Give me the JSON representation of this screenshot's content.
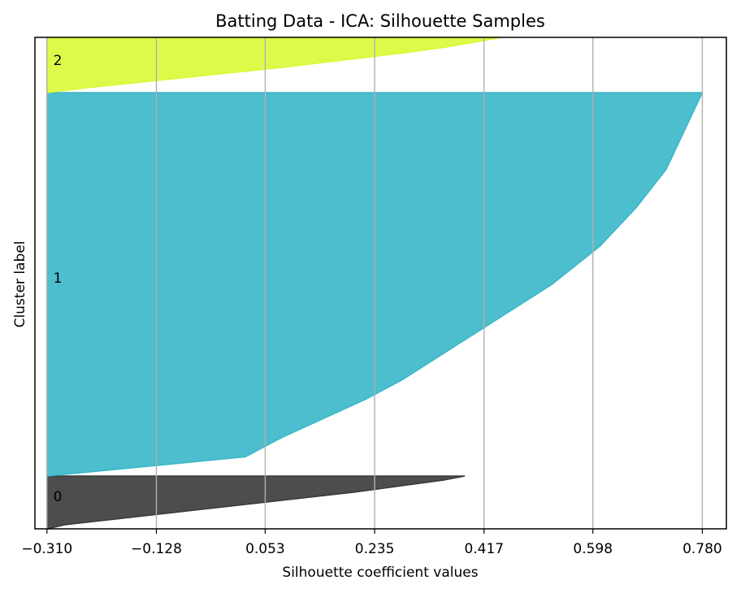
{
  "chart_data": {
    "type": "area",
    "title": "Batting Data - ICA: Silhouette Samples",
    "xlabel": "Silhouette coefficient values",
    "ylabel": "Cluster label",
    "xlim": [
      -0.33,
      0.82
    ],
    "xticks": [
      -0.31,
      -0.128,
      0.053,
      0.235,
      0.417,
      0.598,
      0.78
    ],
    "xtick_labels": [
      "−0.310",
      "−0.128",
      "0.053",
      "0.235",
      "0.417",
      "0.598",
      "0.780"
    ],
    "grid": "vertical",
    "series": [
      {
        "name": "0",
        "color": "#3a3a3a",
        "min": -0.31,
        "max": 0.385,
        "silhouette_sorted_desc": [
          0.385,
          0.35,
          0.3,
          0.25,
          0.2,
          0.14,
          0.08,
          0.02,
          -0.04,
          -0.1,
          -0.16,
          -0.22,
          -0.28,
          -0.31
        ]
      },
      {
        "name": "1",
        "color": "#3ab7c8",
        "min": -0.31,
        "max": 0.78,
        "silhouette_sorted_desc": [
          0.78,
          0.765,
          0.75,
          0.735,
          0.72,
          0.695,
          0.67,
          0.64,
          0.61,
          0.57,
          0.53,
          0.48,
          0.43,
          0.38,
          0.33,
          0.28,
          0.22,
          0.15,
          0.08,
          0.02,
          -0.31
        ]
      },
      {
        "name": "2",
        "color": "#d7fa35",
        "min": -0.31,
        "max": 0.445,
        "silhouette_sorted_desc": [
          0.445,
          0.4,
          0.35,
          0.29,
          0.22,
          0.15,
          0.08,
          0.0,
          -0.08,
          -0.16,
          -0.24,
          -0.31
        ]
      }
    ],
    "cluster_labels": [
      "0",
      "1",
      "2"
    ]
  }
}
